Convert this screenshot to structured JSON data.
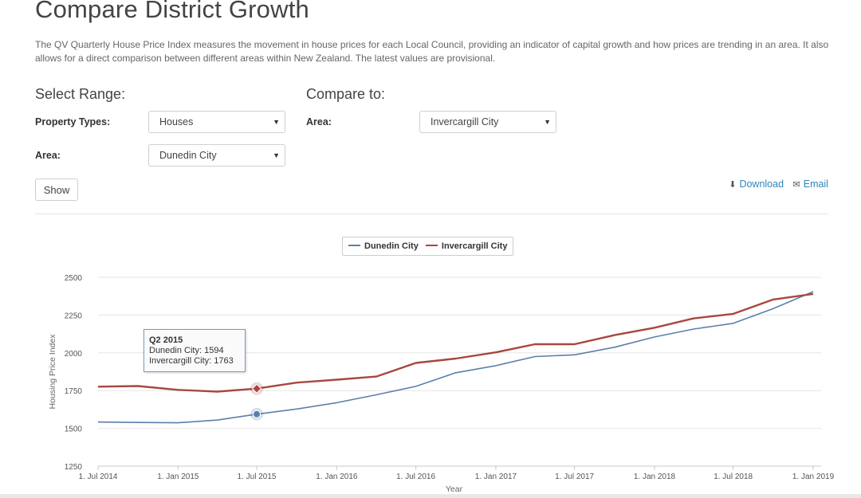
{
  "page": {
    "title": "Compare District Growth",
    "description": "The QV Quarterly House Price Index measures the movement in house prices for each Local Council, providing an indicator of capital growth and how prices are trending in an area. It also allows for a direct comparison between different areas within New Zealand. The latest values are provisional."
  },
  "select_range": {
    "heading": "Select Range:",
    "property_types_label": "Property Types:",
    "property_types_value": "Houses",
    "area_label": "Area:",
    "area_value": "Dunedin City"
  },
  "compare_to": {
    "heading": "Compare to:",
    "area_label": "Area:",
    "area_value": "Invercargill City"
  },
  "show_button": "Show",
  "actions": {
    "download": "Download",
    "email": "Email"
  },
  "icons": {
    "download": "download-icon",
    "email": "envelope-icon",
    "dropdown": "caret-down-icon"
  },
  "colors": {
    "series_dunedin": "#5b7faa",
    "series_invercargill": "#a8473f",
    "link": "#2e86b8"
  },
  "tooltip": {
    "title": "Q2 2015",
    "line1": "Dunedin City: 1594",
    "line2": "Invercargill City: 1763"
  },
  "chart_data": {
    "type": "line",
    "title": "",
    "xlabel": "Year",
    "ylabel": "Housing Price Index",
    "ylim": [
      1250,
      2500
    ],
    "yticks": [
      1250,
      1500,
      1750,
      2000,
      2250,
      2500
    ],
    "xlim": [
      "2014-07-01",
      "2019-01-01"
    ],
    "xticks": [
      {
        "date": "2014-07-01",
        "label": "1. Jul 2014"
      },
      {
        "date": "2015-01-01",
        "label": "1. Jan 2015"
      },
      {
        "date": "2015-07-01",
        "label": "1. Jul 2015"
      },
      {
        "date": "2016-01-01",
        "label": "1. Jan 2016"
      },
      {
        "date": "2016-07-01",
        "label": "1. Jul 2016"
      },
      {
        "date": "2017-01-01",
        "label": "1. Jan 2017"
      },
      {
        "date": "2017-07-01",
        "label": "1. Jul 2017"
      },
      {
        "date": "2018-01-01",
        "label": "1. Jan 2018"
      },
      {
        "date": "2018-07-01",
        "label": "1. Jul 2018"
      },
      {
        "date": "2019-01-01",
        "label": "1. Jan 2019"
      }
    ],
    "grid": true,
    "legend_position": "top-center",
    "x": [
      "2014-07-01",
      "2014-10-01",
      "2015-01-01",
      "2015-04-01",
      "2015-07-01",
      "2015-10-01",
      "2016-01-01",
      "2016-04-01",
      "2016-07-01",
      "2016-10-01",
      "2017-01-01",
      "2017-04-01",
      "2017-07-01",
      "2017-10-01",
      "2018-01-01",
      "2018-04-01",
      "2018-07-01",
      "2018-10-01",
      "2019-01-01"
    ],
    "series": [
      {
        "name": "Dunedin City",
        "values": [
          1542,
          1539,
          1537,
          1555,
          1594,
          1628,
          1670,
          1722,
          1778,
          1868,
          1915,
          1975,
          1987,
          2037,
          2105,
          2157,
          2195,
          2292,
          2405
        ]
      },
      {
        "name": "Invercargill City",
        "values": [
          1776,
          1780,
          1755,
          1743,
          1763,
          1803,
          1822,
          1843,
          1933,
          1962,
          2003,
          2057,
          2057,
          2117,
          2166,
          2228,
          2258,
          2353,
          2390
        ]
      }
    ],
    "highlight_index": 4
  }
}
